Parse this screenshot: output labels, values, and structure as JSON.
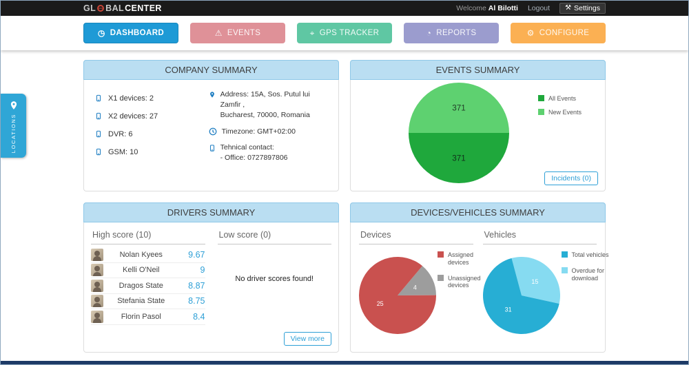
{
  "topbar": {
    "brand_pre": "GL",
    "brand_mid": "BAL",
    "brand_bold": "CENTER",
    "welcome": "Welcome",
    "user": "Al Bilotti",
    "logout": "Logout",
    "settings": "Settings",
    "settings_icon": "⚒"
  },
  "nav": {
    "dashboard": {
      "label": "DASHBOARD",
      "icon": "◷"
    },
    "events": {
      "label": "EVENTS",
      "icon": "⚠"
    },
    "gps": {
      "label": "GPS TRACKER",
      "icon": "⌖"
    },
    "reports": {
      "label": "REPORTS",
      "icon": "◔"
    },
    "configure": {
      "label": "CONFIGURE",
      "icon": "⚙"
    }
  },
  "locations_tab": {
    "label": "LOCATIONS"
  },
  "theme": {
    "active_blue": "#1e9ad6",
    "panel_header_blue": "#badef2",
    "accent_blue": "#2d9fd6"
  },
  "panels": {
    "company": {
      "title": "COMPANY SUMMARY",
      "devices": [
        "X1 devices: 2",
        "X2 devices: 27",
        "DVR: 6",
        "GSM: 10"
      ],
      "address1": "Address: 15A, Sos. Putul lui Zamfir ,",
      "address2": "Bucharest, 70000, Romania",
      "timezone": "Timezone: GMT+02:00",
      "contact1": "Tehnical contact:",
      "contact2": "- Office: 0727897806"
    },
    "events": {
      "title": "EVENTS SUMMARY",
      "legend": [
        {
          "label": "All Events",
          "color": "#1fa83c"
        },
        {
          "label": "New Events",
          "color": "#5ed170"
        }
      ],
      "incidents_button": "Incidents (0)",
      "chart": {
        "type": "pie",
        "start": -90,
        "slices": [
          {
            "name": "New Events",
            "value": 371,
            "color": "#5ed170",
            "labelColor": "#213d27"
          },
          {
            "name": "All Events",
            "value": 371,
            "color": "#1fa83c",
            "labelColor": "#10301a"
          }
        ]
      }
    },
    "drivers": {
      "title": "DRIVERS SUMMARY",
      "high_header": "High score (10)",
      "low_header": "Low score (0)",
      "high": [
        {
          "name": "Nolan Kyees",
          "score": "9.67"
        },
        {
          "name": "Kelli O'Neil",
          "score": "9"
        },
        {
          "name": "Dragos State",
          "score": "8.87"
        },
        {
          "name": "Stefania State",
          "score": "8.75"
        },
        {
          "name": "Florin Pasol",
          "score": "8.4"
        }
      ],
      "low_empty": "No driver scores found!",
      "view_more": "View more"
    },
    "devices_vehicles": {
      "title": "DEVICES/VEHICLES SUMMARY",
      "devices_header": "Devices",
      "vehicles_header": "Vehicles",
      "devices_legend": [
        {
          "label": "Assigned devices",
          "color": "#c9514f"
        },
        {
          "label": "Unassigned devices",
          "color": "#9d9d9d"
        }
      ],
      "devices_chart": {
        "type": "pie",
        "start": 40,
        "slices": [
          {
            "name": "Unassigned devices",
            "value": 4,
            "color": "#9d9d9d",
            "labelColor": "#ffffff"
          },
          {
            "name": "Assigned devices",
            "value": 25,
            "color": "#c9514f",
            "labelColor": "#ffffff"
          }
        ]
      },
      "vehicles_legend": [
        {
          "label": "Total vehicles",
          "color": "#27aed4"
        },
        {
          "label": "Overdue for download",
          "color": "#86dbf1"
        }
      ],
      "vehicles_chart": {
        "type": "pie",
        "start": -15,
        "slices": [
          {
            "name": "Overdue for download",
            "value": 15,
            "color": "#86dbf1",
            "labelColor": "#ffffff"
          },
          {
            "name": "Total vehicles",
            "value": 31,
            "color": "#27aed4",
            "labelColor": "#ffffff"
          }
        ]
      }
    }
  }
}
